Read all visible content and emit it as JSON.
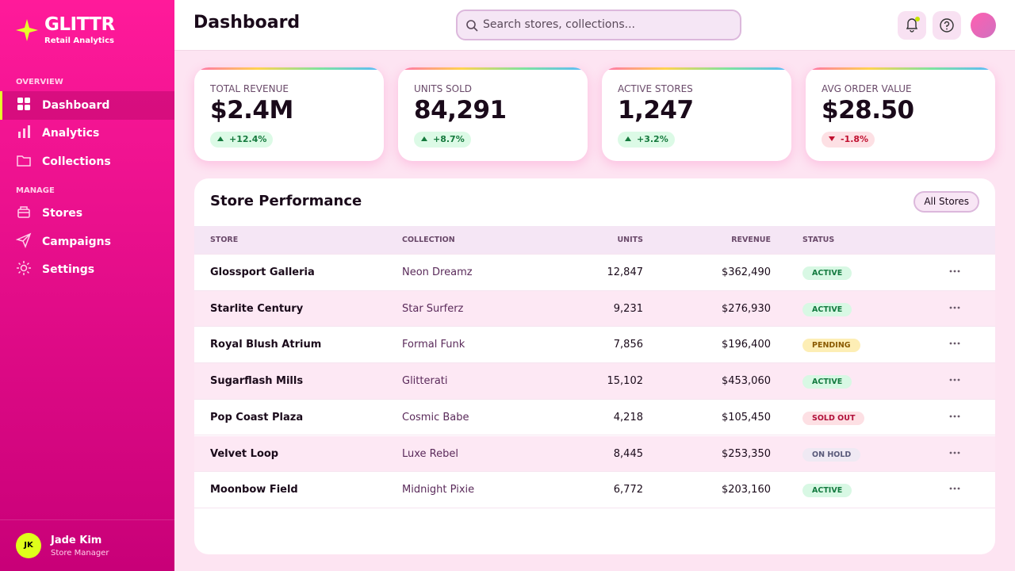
{
  "brand": {
    "name": "GLITTR",
    "tagline": "Retail Analytics"
  },
  "sidebar": {
    "sections": [
      {
        "label": "OVERVIEW",
        "items": [
          {
            "label": "Dashboard",
            "active": true
          },
          {
            "label": "Analytics",
            "active": false
          },
          {
            "label": "Collections",
            "active": false
          }
        ]
      },
      {
        "label": "MANAGE",
        "items": [
          {
            "label": "Stores",
            "active": false
          },
          {
            "label": "Campaigns",
            "active": false
          },
          {
            "label": "Settings",
            "active": false
          }
        ]
      }
    ],
    "user": {
      "initials": "JK",
      "name": "Jade Kim",
      "role": "Store Manager"
    }
  },
  "header": {
    "title": "Dashboard",
    "search": "Search stores, collections..."
  },
  "kpis": [
    {
      "label": "TOTAL REVENUE",
      "value": "$2.4M",
      "change": "+12.4%",
      "trend": "up"
    },
    {
      "label": "UNITS SOLD",
      "value": "84,291",
      "change": "+8.7%",
      "trend": "up"
    },
    {
      "label": "ACTIVE STORES",
      "value": "1,247",
      "change": "+3.2%",
      "trend": "up"
    },
    {
      "label": "AVG ORDER VALUE",
      "value": "$28.50",
      "change": "-1.8%",
      "trend": "down"
    }
  ],
  "table": {
    "title": "Store Performance",
    "filter": "All Stores",
    "columns": [
      "STORE",
      "COLLECTION",
      "UNITS",
      "REVENUE",
      "STATUS"
    ],
    "rows": [
      {
        "store": "Glossport Galleria",
        "collection": "Neon Dreamz",
        "units": "12,847",
        "revenue": "$362,490",
        "status": "ACTIVE",
        "status_color": "#137a3f",
        "status_bg": "#d8f8e4"
      },
      {
        "store": "Starlite Century",
        "collection": "Star Surferz",
        "units": "9,231",
        "revenue": "$276,930",
        "status": "ACTIVE",
        "status_color": "#137a3f",
        "status_bg": "#d8f8e4"
      },
      {
        "store": "Royal Blush Atrium",
        "collection": "Formal Funk",
        "units": "7,856",
        "revenue": "$196,400",
        "status": "PENDING",
        "status_color": "#8a5a00",
        "status_bg": "#fdeeb5"
      },
      {
        "store": "Sugarflash Mills",
        "collection": "Glitterati",
        "units": "15,102",
        "revenue": "$453,060",
        "status": "ACTIVE",
        "status_color": "#137a3f",
        "status_bg": "#d8f8e4"
      },
      {
        "store": "Pop Coast Plaza",
        "collection": "Cosmic Babe",
        "units": "4,218",
        "revenue": "$105,450",
        "status": "SOLD OUT",
        "status_color": "#b0103a",
        "status_bg": "#fde0e4"
      },
      {
        "store": "Velvet Loop",
        "collection": "Luxe Rebel",
        "units": "8,445",
        "revenue": "$253,350",
        "status": "ON HOLD",
        "status_color": "#5a5a7a",
        "status_bg": "#efe9f3"
      },
      {
        "store": "Moonbow Field",
        "collection": "Midnight Pixie",
        "units": "6,772",
        "revenue": "$203,160",
        "status": "ACTIVE",
        "status_color": "#137a3f",
        "status_bg": "#d8f8e4"
      }
    ]
  }
}
